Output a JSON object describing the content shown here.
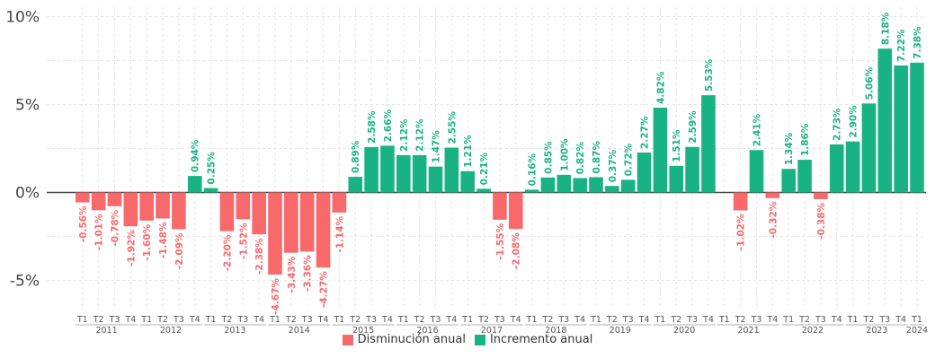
{
  "colors": {
    "negative": "#F8696B",
    "positive": "#19B383",
    "grid": "#e4e4e4",
    "axis": "#444444",
    "tick_text": "#555555"
  },
  "legend": {
    "negative_label": "Disminución anual",
    "positive_label": "Incremento anual"
  },
  "chart_data": {
    "type": "bar",
    "ylim": [
      -7,
      10
    ],
    "yticks": [
      -5,
      0,
      5,
      10
    ],
    "ytick_labels": [
      "-5%",
      "0%",
      "5%",
      "10%"
    ],
    "grid": true,
    "legend_position": "bottom-center",
    "years": [
      {
        "label": "2011",
        "quarters": [
          "T1",
          "T2",
          "T3",
          "T4"
        ],
        "values": [
          -0.56,
          -1.01,
          -0.78,
          -1.92
        ]
      },
      {
        "label": "2012",
        "quarters": [
          "T1",
          "T2",
          "T3",
          "T4"
        ],
        "values": [
          -1.6,
          -1.48,
          -2.09,
          0.94
        ]
      },
      {
        "label": "2013",
        "quarters": [
          "T1",
          "T2",
          "T3",
          "T4"
        ],
        "values": [
          0.25,
          -2.2,
          -1.52,
          -2.38
        ]
      },
      {
        "label": "2014",
        "quarters": [
          "T1",
          "T2",
          "T3",
          "T4"
        ],
        "values": [
          -4.67,
          -3.43,
          -3.36,
          -4.27
        ]
      },
      {
        "label": "2015",
        "quarters": [
          "T1",
          "T2",
          "T3",
          "T4"
        ],
        "values": [
          -1.14,
          0.89,
          2.58,
          2.66
        ]
      },
      {
        "label": "2016",
        "quarters": [
          "T1",
          "T2",
          "T3",
          "T4"
        ],
        "values": [
          2.12,
          2.12,
          1.47,
          2.55
        ]
      },
      {
        "label": "2017",
        "quarters": [
          "T1",
          "T2",
          "T3",
          "T4"
        ],
        "values": [
          1.21,
          0.21,
          -1.55,
          -2.08
        ]
      },
      {
        "label": "2018",
        "quarters": [
          "T1",
          "T2",
          "T3",
          "T4"
        ],
        "values": [
          0.16,
          0.85,
          1.0,
          0.82
        ]
      },
      {
        "label": "2019",
        "quarters": [
          "T1",
          "T2",
          "T3",
          "T4"
        ],
        "values": [
          0.87,
          0.37,
          0.72,
          2.27
        ]
      },
      {
        "label": "2020",
        "quarters": [
          "T1",
          "T2",
          "T3",
          "T4"
        ],
        "values": [
          4.82,
          1.51,
          2.59,
          5.53
        ]
      },
      {
        "label": "2021",
        "quarters": [
          "T1",
          "T2",
          "T3",
          "T4"
        ],
        "values": [
          null,
          -1.02,
          2.41,
          -0.32
        ]
      },
      {
        "label": "2022",
        "quarters": [
          "T1",
          "T2",
          "T3",
          "T4"
        ],
        "values": [
          1.34,
          1.86,
          -0.38,
          2.73
        ]
      },
      {
        "label": "2023",
        "quarters": [
          "T1",
          "T2",
          "T3",
          "T4"
        ],
        "values": [
          2.9,
          5.06,
          8.18,
          7.22
        ]
      },
      {
        "label": "2024",
        "quarters": [
          "T1"
        ],
        "values": [
          7.38
        ]
      }
    ],
    "shown_labels": {
      "2011": [
        "-0.56%",
        "-1.01%",
        "-0.78%",
        "-1.92%"
      ],
      "2012": [
        "-1.60%",
        "-1.48%",
        "-2.09%",
        "0.94%"
      ],
      "2013": [
        "0.25%",
        "-2.20%",
        "-1.52%",
        "-2.38%"
      ],
      "2014": [
        "-4.67%",
        "-3.43%",
        "-3.36%",
        "-4.27%"
      ],
      "2015": [
        "-1.14%",
        "0.89%",
        "2.58%",
        "2.66%"
      ],
      "2016": [
        "2.12%",
        "2.12%",
        "1.47%",
        "2.55%"
      ],
      "2017": [
        "1.21%",
        "0.21%",
        "-1.55%",
        "-2.08%"
      ],
      "2018": [
        "0.16%",
        "0.85%",
        "1.00%",
        "0.82%"
      ],
      "2019": [
        "0.87%",
        "0.37%",
        "0.72%",
        "2.27%"
      ],
      "2020": [
        "4.82%",
        "1.51%",
        "2.59%",
        "5.53%"
      ],
      "2021": [
        "",
        "-1.02%",
        "2.41%",
        "-0.32%"
      ],
      "2022": [
        "1.34%",
        "1.86%",
        "-0.38%",
        "2.73%"
      ],
      "2023": [
        "2.90%",
        "5.06%",
        "8.18%",
        "7.22%"
      ],
      "2024": [
        "7.38%"
      ]
    }
  }
}
